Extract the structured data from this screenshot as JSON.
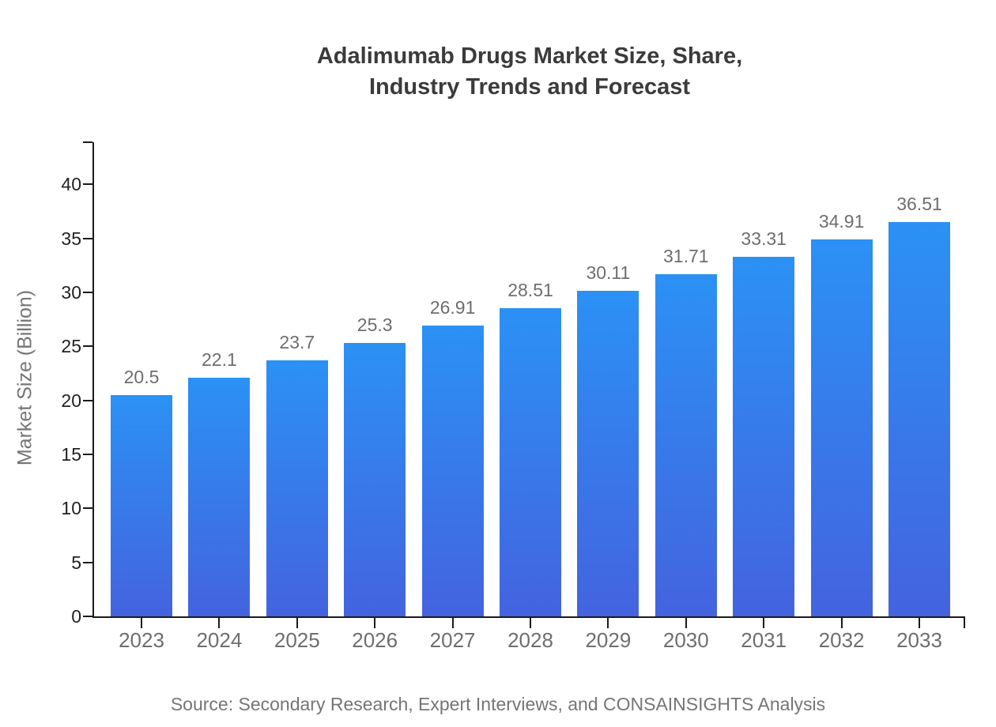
{
  "chart_data": {
    "type": "bar",
    "title": "Adalimumab Drugs Market Size, Share,\nIndustry Trends and Forecast",
    "xlabel": "",
    "ylabel": "Market Size (Billion)",
    "categories": [
      "2023",
      "2024",
      "2025",
      "2026",
      "2027",
      "2028",
      "2029",
      "2030",
      "2031",
      "2032",
      "2033"
    ],
    "values": [
      20.5,
      22.1,
      23.7,
      25.3,
      26.91,
      28.51,
      30.11,
      31.71,
      33.31,
      34.91,
      36.51
    ],
    "value_labels": [
      "20.5",
      "22.1",
      "23.7",
      "25.3",
      "26.91",
      "28.51",
      "30.11",
      "31.71",
      "33.31",
      "34.91",
      "36.51"
    ],
    "yticks": [
      0,
      5,
      10,
      15,
      20,
      25,
      30,
      35,
      40
    ],
    "ylim": [
      0,
      43.9
    ],
    "grid": false,
    "legend_position": "none",
    "source": "Source: Secondary Research, Expert Interviews, and CONSAINSIGHTS Analysis",
    "colors": {
      "bar_gradient_top": "#2B91F4",
      "bar_gradient_bottom": "#4463DF",
      "axis": "#1a1a1a",
      "title": "#3b3b3b",
      "tick_label": "#222222",
      "category_label": "#6e6e6e",
      "value_label": "#6e6e6e",
      "muted_text": "#757575"
    }
  }
}
